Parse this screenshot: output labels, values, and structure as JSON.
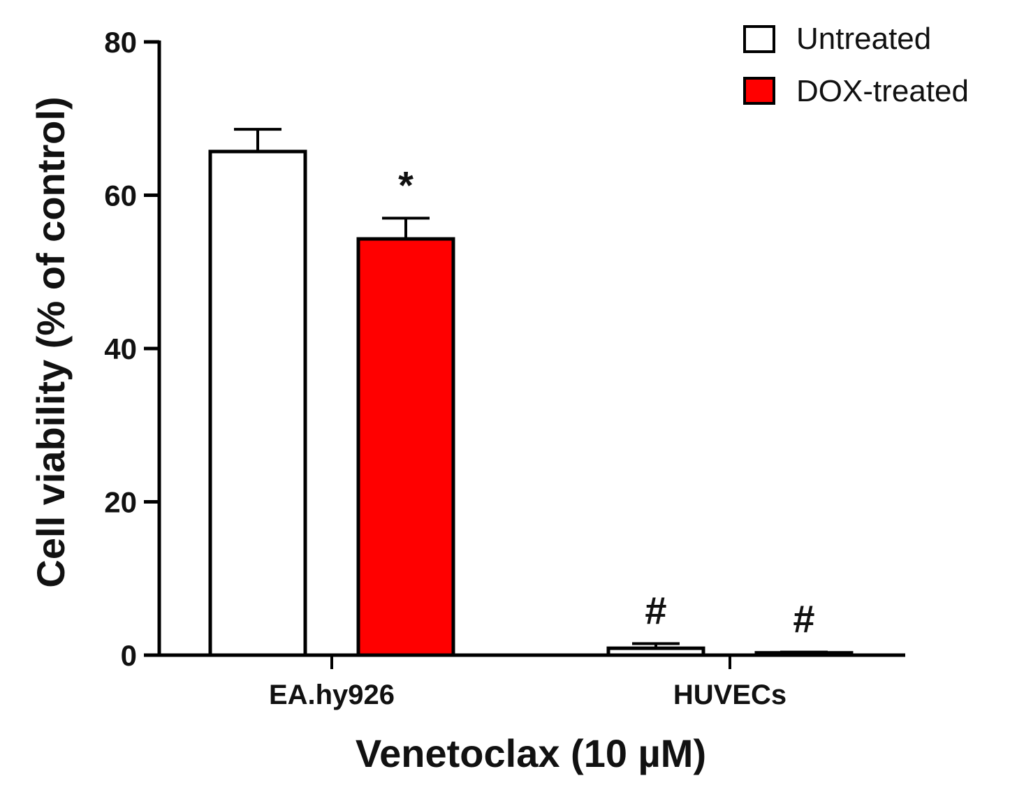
{
  "chart_data": {
    "type": "bar",
    "categories": [
      "EA.hy926",
      "HUVECs"
    ],
    "series": [
      {
        "name": "Untreated",
        "values": [
          65.7,
          0.9
        ],
        "errors": [
          2.9,
          0.6
        ],
        "color": "#ffffff",
        "annotations": [
          "",
          "#"
        ]
      },
      {
        "name": "DOX-treated",
        "values": [
          54.3,
          0.3
        ],
        "errors": [
          2.7,
          0.1
        ],
        "color": "#ff0000",
        "annotations": [
          "*",
          "#"
        ]
      }
    ],
    "xlabel": "Venetoclax (10 µM)",
    "ylabel": "Cell viability (% of control)",
    "ylim": [
      0,
      80
    ],
    "yticks": [
      0,
      20,
      40,
      60,
      80
    ],
    "legend_position": "top-right",
    "grid": false
  }
}
